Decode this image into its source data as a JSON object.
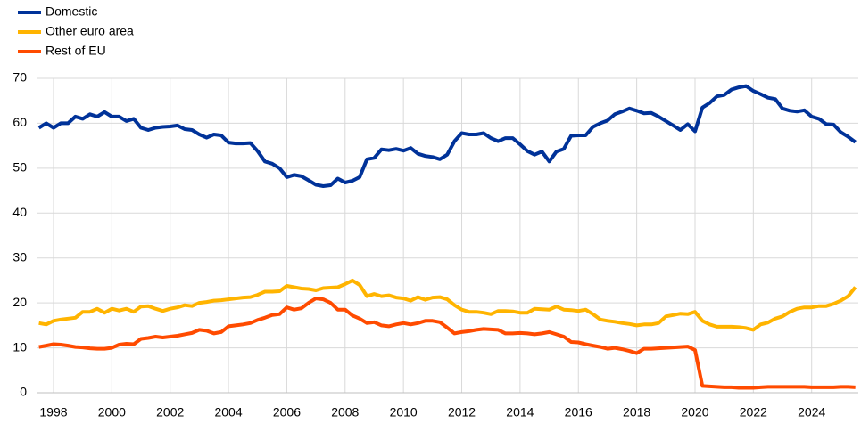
{
  "chart_data": {
    "type": "line",
    "x": [
      1997.5,
      1997.75,
      1998,
      1998.25,
      1998.5,
      1998.75,
      1999,
      1999.25,
      1999.5,
      1999.75,
      2000,
      2000.25,
      2000.5,
      2000.75,
      2001,
      2001.25,
      2001.5,
      2001.75,
      2002,
      2002.25,
      2002.5,
      2002.75,
      2003,
      2003.25,
      2003.5,
      2003.75,
      2004,
      2004.25,
      2004.5,
      2004.75,
      2005,
      2005.25,
      2005.5,
      2005.75,
      2006,
      2006.25,
      2006.5,
      2006.75,
      2007,
      2007.25,
      2007.5,
      2007.75,
      2008,
      2008.25,
      2008.5,
      2008.75,
      2009,
      2009.25,
      2009.5,
      2009.75,
      2010,
      2010.25,
      2010.5,
      2010.75,
      2011,
      2011.25,
      2011.5,
      2011.75,
      2012,
      2012.25,
      2012.5,
      2012.75,
      2013,
      2013.25,
      2013.5,
      2013.75,
      2014,
      2014.25,
      2014.5,
      2014.75,
      2015,
      2015.25,
      2015.5,
      2015.75,
      2016,
      2016.25,
      2016.5,
      2016.75,
      2017,
      2017.25,
      2017.5,
      2017.75,
      2018,
      2018.25,
      2018.5,
      2018.75,
      2019,
      2019.25,
      2019.5,
      2019.75,
      2020,
      2020.25,
      2020.5,
      2020.75,
      2021,
      2021.25,
      2021.5,
      2021.75,
      2022,
      2022.25,
      2022.5,
      2022.75,
      2023,
      2023.25,
      2023.5,
      2023.75,
      2024,
      2024.25,
      2024.5,
      2024.75,
      2025,
      2025.25,
      2025.5
    ],
    "series": [
      {
        "name": "Domestic",
        "color": "#003299",
        "values": [
          59,
          60,
          59,
          60,
          60,
          61.5,
          61,
          62,
          61.5,
          62.5,
          61.5,
          61.5,
          60.5,
          61,
          59,
          58.5,
          59,
          59.2,
          59.3,
          59.5,
          58.7,
          58.5,
          57.5,
          56.8,
          57.5,
          57.3,
          55.7,
          55.5,
          55.5,
          55.6,
          53.8,
          51.5,
          51,
          50,
          48,
          48.5,
          48.2,
          47.3,
          46.3,
          46,
          46.2,
          47.7,
          46.8,
          47.2,
          48,
          52,
          52.3,
          54.2,
          54,
          54.3,
          53.9,
          54.5,
          53.2,
          52.7,
          52.5,
          52,
          53,
          56,
          57.8,
          57.5,
          57.5,
          57.8,
          56.7,
          56,
          56.7,
          56.7,
          55.3,
          53.8,
          53,
          53.7,
          51.5,
          53.7,
          54.3,
          57.2,
          57.3,
          57.3,
          59.2,
          60,
          60.6,
          62,
          62.6,
          63.3,
          62.8,
          62.2,
          62.3,
          61.5,
          60.5,
          59.5,
          58.5,
          59.8,
          58.2,
          63.5,
          64.5,
          66,
          66.3,
          67.5,
          68,
          68.3,
          67.2,
          66.5,
          65.7,
          65.4,
          63.3,
          62.8,
          62.6,
          62.9,
          61.5,
          61,
          59.8,
          59.7,
          58,
          57,
          55.8
        ]
      },
      {
        "name": "Other euro area",
        "color": "#ffb400",
        "values": [
          15.5,
          15.2,
          16,
          16.3,
          16.5,
          16.7,
          18,
          18,
          18.7,
          17.8,
          18.7,
          18.3,
          18.7,
          18,
          19.2,
          19.3,
          18.7,
          18.2,
          18.7,
          19,
          19.5,
          19.3,
          20,
          20.2,
          20.5,
          20.6,
          20.8,
          21,
          21.2,
          21.3,
          21.8,
          22.5,
          22.5,
          22.6,
          23.8,
          23.5,
          23.2,
          23.1,
          22.8,
          23.3,
          23.4,
          23.5,
          24.2,
          25,
          24,
          21.5,
          22,
          21.5,
          21.7,
          21.2,
          21,
          20.5,
          21.3,
          20.7,
          21.2,
          21.3,
          20.8,
          19.5,
          18.5,
          18,
          18,
          17.8,
          17.5,
          18.2,
          18.2,
          18.1,
          17.8,
          17.8,
          18.7,
          18.6,
          18.5,
          19.2,
          18.5,
          18.4,
          18.2,
          18.5,
          17.5,
          16.3,
          16,
          15.8,
          15.5,
          15.3,
          15,
          15.2,
          15.2,
          15.5,
          17,
          17.3,
          17.6,
          17.5,
          18,
          16,
          15.2,
          14.7,
          14.7,
          14.7,
          14.6,
          14.4,
          14,
          15.2,
          15.6,
          16.5,
          17,
          18,
          18.7,
          19,
          19,
          19.3,
          19.3,
          19.8,
          20.5,
          21.5,
          23.5
        ]
      },
      {
        "name": "Rest of EU",
        "color": "#ff4b00",
        "values": [
          10.2,
          10.5,
          10.8,
          10.7,
          10.5,
          10.2,
          10.1,
          9.9,
          9.8,
          9.8,
          10,
          10.7,
          10.9,
          10.8,
          12,
          12.2,
          12.5,
          12.3,
          12.5,
          12.7,
          13,
          13.3,
          14,
          13.8,
          13.2,
          13.5,
          14.8,
          15,
          15.2,
          15.5,
          16.2,
          16.7,
          17.3,
          17.5,
          19,
          18.5,
          18.8,
          20,
          21,
          20.8,
          20,
          18.5,
          18.5,
          17.2,
          16.5,
          15.5,
          15.7,
          15,
          14.8,
          15.2,
          15.5,
          15.2,
          15.5,
          16,
          16,
          15.7,
          14.5,
          13.2,
          13.5,
          13.7,
          14,
          14.2,
          14.1,
          14,
          13.2,
          13.2,
          13.3,
          13.2,
          13,
          13.2,
          13.5,
          13,
          12.5,
          11.3,
          11.2,
          10.8,
          10.5,
          10.2,
          9.8,
          10,
          9.7,
          9.3,
          8.8,
          9.8,
          9.8,
          9.9,
          10,
          10.1,
          10.2,
          10.3,
          9.5,
          1.5,
          1.4,
          1.3,
          1.2,
          1.2,
          1.1,
          1.1,
          1.1,
          1.2,
          1.3,
          1.3,
          1.3,
          1.3,
          1.3,
          1.3,
          1.2,
          1.2,
          1.2,
          1.2,
          1.3,
          1.3,
          1.2
        ]
      }
    ],
    "xlim": [
      1997.45,
      2025.6
    ],
    "xticks": [
      1998,
      2000,
      2002,
      2004,
      2006,
      2008,
      2010,
      2012,
      2014,
      2016,
      2018,
      2020,
      2022,
      2024
    ],
    "ylim": [
      0,
      70
    ],
    "yticks": [
      0,
      10,
      20,
      30,
      40,
      50,
      60,
      70
    ],
    "grid": true,
    "legend": "top-left"
  }
}
